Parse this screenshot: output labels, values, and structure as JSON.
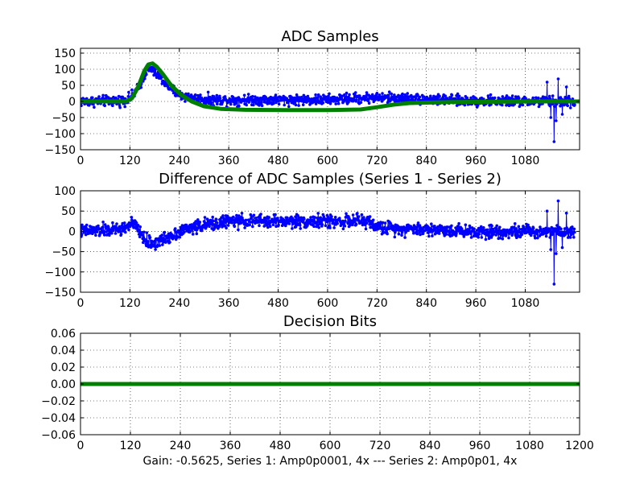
{
  "chart_data": [
    {
      "type": "line",
      "title": "ADC Samples",
      "xlabel": "",
      "ylabel": "",
      "xlim": [
        0,
        1212
      ],
      "ylim": [
        -150,
        165
      ],
      "xticks": [
        0,
        120,
        240,
        360,
        480,
        600,
        720,
        840,
        960,
        1080
      ],
      "xtick_labels": [
        "0",
        "120",
        "240",
        "360",
        "480",
        "600",
        "720",
        "840",
        "960",
        "1080"
      ],
      "yticks": [
        150,
        100,
        50,
        0,
        -50,
        -100,
        -150
      ],
      "ytick_labels": [
        "150",
        "100",
        "50",
        "0",
        "−50",
        "−100",
        "−150"
      ],
      "grid": true,
      "series": [
        {
          "name": "Series 1",
          "color": "#0000ff",
          "style": "line-with-dots",
          "baseline_points": [
            [
              0,
              0
            ],
            [
              100,
              2
            ],
            [
              120,
              10
            ],
            [
              140,
              40
            ],
            [
              160,
              95
            ],
            [
              170,
              100
            ],
            [
              190,
              80
            ],
            [
              210,
              50
            ],
            [
              240,
              20
            ],
            [
              280,
              8
            ],
            [
              320,
              5
            ],
            [
              480,
              5
            ],
            [
              600,
              5
            ],
            [
              700,
              12
            ],
            [
              780,
              10
            ],
            [
              900,
              3
            ],
            [
              1080,
              0
            ],
            [
              1150,
              0
            ],
            [
              1200,
              0
            ]
          ],
          "noise_amplitude": 16,
          "spikes": [
            [
              1133,
              60
            ],
            [
              1142,
              -50
            ],
            [
              1150,
              -125
            ],
            [
              1155,
              -60
            ],
            [
              1160,
              70
            ],
            [
              1170,
              -40
            ],
            [
              1180,
              45
            ],
            [
              1190,
              -20
            ]
          ]
        },
        {
          "name": "Series 2",
          "color": "#008000",
          "style": "thick-line",
          "points": [
            [
              0,
              0
            ],
            [
              110,
              0
            ],
            [
              125,
              10
            ],
            [
              140,
              45
            ],
            [
              155,
              95
            ],
            [
              165,
              115
            ],
            [
              175,
              118
            ],
            [
              185,
              108
            ],
            [
              200,
              85
            ],
            [
              220,
              50
            ],
            [
              245,
              20
            ],
            [
              270,
              0
            ],
            [
              300,
              -15
            ],
            [
              340,
              -23
            ],
            [
              400,
              -26
            ],
            [
              500,
              -27
            ],
            [
              600,
              -27
            ],
            [
              680,
              -25
            ],
            [
              720,
              -18
            ],
            [
              760,
              -10
            ],
            [
              800,
              -5
            ],
            [
              900,
              -2
            ],
            [
              1000,
              -1
            ],
            [
              1100,
              0
            ],
            [
              1212,
              0
            ]
          ]
        }
      ]
    },
    {
      "type": "line",
      "title": "Difference of ADC Samples (Series 1 - Series 2)",
      "xlabel": "",
      "ylabel": "",
      "xlim": [
        0,
        1212
      ],
      "ylim": [
        -150,
        100
      ],
      "xticks": [
        0,
        120,
        240,
        360,
        480,
        600,
        720,
        840,
        960,
        1080
      ],
      "xtick_labels": [
        "0",
        "120",
        "240",
        "360",
        "480",
        "600",
        "720",
        "840",
        "960",
        "1080"
      ],
      "yticks": [
        100,
        50,
        0,
        -50,
        -100,
        -150
      ],
      "ytick_labels": [
        "100",
        "50",
        "0",
        "−50",
        "−100",
        "−150"
      ],
      "grid": true,
      "series": [
        {
          "name": "Series 1 - Series 2",
          "color": "#0000ff",
          "style": "line-with-dots",
          "baseline_points": [
            [
              0,
              0
            ],
            [
              100,
              5
            ],
            [
              125,
              20
            ],
            [
              140,
              5
            ],
            [
              160,
              -25
            ],
            [
              180,
              -30
            ],
            [
              200,
              -20
            ],
            [
              240,
              0
            ],
            [
              280,
              12
            ],
            [
              360,
              25
            ],
            [
              480,
              25
            ],
            [
              600,
              25
            ],
            [
              700,
              25
            ],
            [
              720,
              10
            ],
            [
              840,
              5
            ],
            [
              960,
              0
            ],
            [
              1080,
              0
            ],
            [
              1200,
              0
            ]
          ],
          "noise_amplitude": 16,
          "spikes": [
            [
              1133,
              50
            ],
            [
              1142,
              -45
            ],
            [
              1150,
              -130
            ],
            [
              1155,
              -55
            ],
            [
              1160,
              75
            ],
            [
              1170,
              -40
            ],
            [
              1180,
              45
            ],
            [
              1190,
              -15
            ]
          ]
        }
      ]
    },
    {
      "type": "line",
      "title": "Decision Bits",
      "xlabel": "Gain: -0.5625, Series 1: Amp0p0001, 4x --- Series 2: Amp0p01, 4x",
      "ylabel": "",
      "xlim": [
        0,
        1200
      ],
      "ylim": [
        -0.06,
        0.06
      ],
      "xticks": [
        0,
        120,
        240,
        360,
        480,
        600,
        720,
        840,
        960,
        1080,
        1200
      ],
      "xtick_labels": [
        "0",
        "120",
        "240",
        "360",
        "480",
        "600",
        "720",
        "840",
        "960",
        "1080",
        "1200"
      ],
      "yticks": [
        0.06,
        0.04,
        0.02,
        0.0,
        -0.02,
        -0.04,
        -0.06
      ],
      "ytick_labels": [
        "0.06",
        "0.04",
        "0.02",
        "0.00",
        "−0.02",
        "−0.04",
        "−0.06"
      ],
      "grid": true,
      "series": [
        {
          "name": "Decision Bits",
          "color": "#008000",
          "style": "thick-line",
          "points": [
            [
              0,
              0
            ],
            [
              1200,
              0
            ]
          ]
        }
      ]
    }
  ]
}
